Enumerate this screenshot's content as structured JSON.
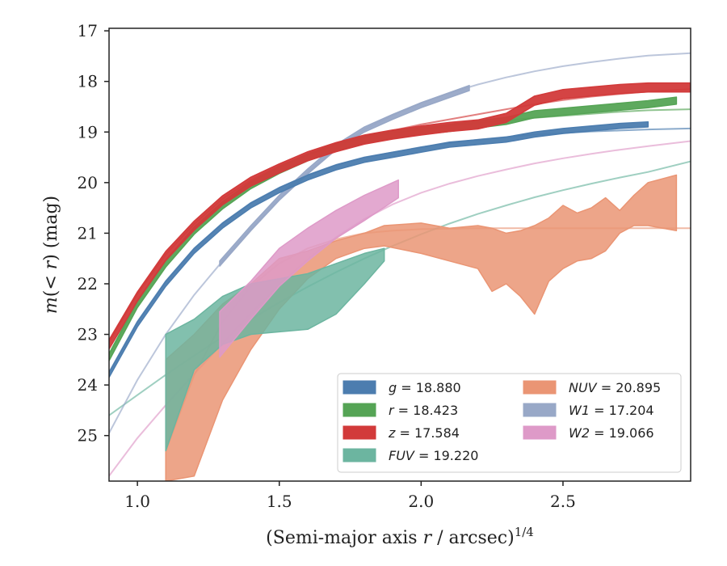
{
  "chart_data": {
    "type": "line",
    "xlabel": "(Semi-major axis r / arcsec)",
    "xlabel_italic_var": "r",
    "xlabel_exponent": "1/4",
    "ylabel": "m(< r) (mag)",
    "xlim": [
      0.9,
      2.95
    ],
    "ylim": [
      25.9,
      16.95
    ],
    "y_inverted": true,
    "xticks": [
      1.0,
      1.5,
      2.0,
      2.5
    ],
    "xtick_labels": [
      "1.0",
      "1.5",
      "2.0",
      "2.5"
    ],
    "yticks": [
      17,
      18,
      19,
      20,
      21,
      22,
      23,
      24,
      25
    ],
    "ytick_labels": [
      "17",
      "18",
      "19",
      "20",
      "21",
      "22",
      "23",
      "24",
      "25"
    ],
    "grid": false,
    "legend_position": "lower-right",
    "legend": [
      {
        "band": "g",
        "value": "18.880",
        "color": "#4c7daf",
        "italic_band": true
      },
      {
        "band": "r",
        "value": "18.423",
        "color": "#55a455",
        "italic_band": true
      },
      {
        "band": "z",
        "value": "17.584",
        "color": "#d23a3a",
        "italic_band": true
      },
      {
        "band": "FUV",
        "value": "19.220",
        "color": "#6cb5a0",
        "italic_band": true
      },
      {
        "band": "NUV",
        "value": "20.895",
        "color": "#ea9574",
        "italic_band": true
      },
      {
        "band": "W1",
        "value": "17.204",
        "color": "#98a8c7",
        "italic_band": true
      },
      {
        "band": "W2",
        "value": "19.066",
        "color": "#de9ac8",
        "italic_band": true
      }
    ],
    "series": [
      {
        "name": "g",
        "color": "#4c7daf",
        "band_x": [
          0.9,
          1.0,
          1.1,
          1.2,
          1.3,
          1.4,
          1.5,
          1.6,
          1.7,
          1.8,
          1.9,
          2.0,
          2.1,
          2.2,
          2.3,
          2.4,
          2.5,
          2.6,
          2.7,
          2.8
        ],
        "band_center": [
          23.8,
          22.8,
          22.0,
          21.35,
          20.85,
          20.45,
          20.15,
          19.9,
          19.7,
          19.55,
          19.45,
          19.35,
          19.25,
          19.2,
          19.15,
          19.05,
          18.98,
          18.93,
          18.88,
          18.85
        ],
        "band_half_width": 0.05,
        "model_x": [
          0.9,
          1.0,
          1.1,
          1.2,
          1.3,
          1.4,
          1.5,
          1.6,
          1.7,
          1.8,
          1.9,
          2.0,
          2.1,
          2.2,
          2.3,
          2.4,
          2.5,
          2.6,
          2.7,
          2.8,
          2.95
        ],
        "model_y": [
          23.75,
          22.75,
          21.95,
          21.3,
          20.8,
          20.4,
          20.1,
          19.85,
          19.65,
          19.5,
          19.4,
          19.3,
          19.22,
          19.15,
          19.1,
          19.05,
          19.02,
          18.99,
          18.97,
          18.95,
          18.93
        ]
      },
      {
        "name": "r",
        "color": "#55a455",
        "band_x": [
          0.9,
          1.0,
          1.1,
          1.2,
          1.3,
          1.4,
          1.5,
          1.6,
          1.7,
          1.8,
          1.9,
          2.0,
          2.1,
          2.2,
          2.3,
          2.4,
          2.5,
          2.6,
          2.7,
          2.8,
          2.9
        ],
        "band_center": [
          23.45,
          22.4,
          21.6,
          20.95,
          20.45,
          20.05,
          19.75,
          19.5,
          19.3,
          19.15,
          19.05,
          18.98,
          18.92,
          18.85,
          18.78,
          18.65,
          18.6,
          18.55,
          18.5,
          18.45,
          18.38
        ],
        "band_half_width": 0.07,
        "model_x": [
          0.9,
          1.0,
          1.1,
          1.2,
          1.3,
          1.4,
          1.5,
          1.6,
          1.7,
          1.8,
          1.9,
          2.0,
          2.1,
          2.2,
          2.3,
          2.4,
          2.5,
          2.6,
          2.7,
          2.8,
          2.95
        ],
        "model_y": [
          23.4,
          22.35,
          21.55,
          20.9,
          20.4,
          20.0,
          19.7,
          19.45,
          19.27,
          19.12,
          19.02,
          18.95,
          18.88,
          18.82,
          18.77,
          18.72,
          18.68,
          18.64,
          18.6,
          18.57,
          18.55
        ]
      },
      {
        "name": "z",
        "color": "#d23a3a",
        "band_x": [
          0.9,
          1.0,
          1.1,
          1.2,
          1.3,
          1.4,
          1.5,
          1.6,
          1.7,
          1.8,
          1.9,
          2.0,
          2.1,
          2.2,
          2.3,
          2.35,
          2.4,
          2.5,
          2.6,
          2.7,
          2.8,
          2.95
        ],
        "band_center": [
          23.2,
          22.25,
          21.45,
          20.85,
          20.35,
          19.98,
          19.72,
          19.48,
          19.3,
          19.15,
          19.05,
          18.97,
          18.9,
          18.85,
          18.72,
          18.55,
          18.38,
          18.25,
          18.2,
          18.15,
          18.12,
          18.12
        ],
        "band_half_width": 0.09,
        "model_x": [
          0.9,
          1.0,
          1.1,
          1.2,
          1.3,
          1.4,
          1.5,
          1.6,
          1.7,
          1.8,
          1.9,
          2.0,
          2.1,
          2.2,
          2.3,
          2.4,
          2.5,
          2.6,
          2.7,
          2.8,
          2.95
        ],
        "model_y": [
          23.15,
          22.2,
          21.42,
          20.82,
          20.32,
          19.95,
          19.67,
          19.45,
          19.25,
          19.1,
          18.97,
          18.85,
          18.75,
          18.65,
          18.55,
          18.45,
          18.37,
          18.3,
          18.25,
          18.2,
          18.15
        ]
      },
      {
        "name": "FUV",
        "color": "#6cb5a0",
        "band_x": [
          1.1,
          1.2,
          1.3,
          1.4,
          1.5,
          1.6,
          1.7,
          1.8,
          1.87
        ],
        "band_upper": [
          23.0,
          22.7,
          22.25,
          22.0,
          21.9,
          21.8,
          21.6,
          21.4,
          21.3
        ],
        "band_lower": [
          25.3,
          23.7,
          23.2,
          23.0,
          22.95,
          22.9,
          22.6,
          22.0,
          21.55
        ],
        "model_x": [
          0.9,
          1.0,
          1.1,
          1.2,
          1.3,
          1.4,
          1.5,
          1.6,
          1.7,
          1.8,
          1.9,
          2.0,
          2.1,
          2.2,
          2.3,
          2.4,
          2.5,
          2.6,
          2.7,
          2.8,
          2.95
        ],
        "model_y": [
          24.6,
          24.2,
          23.8,
          23.42,
          23.05,
          22.7,
          22.37,
          22.06,
          21.77,
          21.5,
          21.25,
          21.02,
          20.81,
          20.62,
          20.45,
          20.29,
          20.15,
          20.02,
          19.9,
          19.79,
          19.58
        ]
      },
      {
        "name": "NUV",
        "color": "#ea9574",
        "band_x": [
          1.1,
          1.2,
          1.3,
          1.4,
          1.5,
          1.6,
          1.7,
          1.8,
          1.87,
          2.0,
          2.1,
          2.2,
          2.25,
          2.3,
          2.35,
          2.4,
          2.45,
          2.5,
          2.55,
          2.6,
          2.65,
          2.7,
          2.75,
          2.8,
          2.9
        ],
        "band_upper": [
          23.5,
          23.0,
          22.4,
          22.0,
          21.5,
          21.35,
          21.15,
          21.0,
          20.85,
          20.8,
          20.9,
          20.85,
          20.9,
          21.0,
          20.95,
          20.85,
          20.7,
          20.45,
          20.6,
          20.5,
          20.3,
          20.55,
          20.25,
          20.0,
          19.85
        ],
        "band_lower": [
          25.9,
          25.8,
          24.3,
          23.3,
          22.5,
          21.9,
          21.5,
          21.3,
          21.25,
          21.4,
          21.55,
          21.7,
          22.15,
          22.0,
          22.25,
          22.6,
          21.95,
          21.7,
          21.55,
          21.5,
          21.35,
          21.0,
          20.85,
          20.85,
          20.95
        ],
        "model_x": [
          1.1,
          1.2,
          1.3,
          1.4,
          1.5,
          1.6,
          1.7,
          1.8,
          1.9,
          2.0,
          2.2,
          2.4,
          2.6,
          2.8,
          2.95
        ],
        "model_y": [
          25.3,
          23.8,
          22.75,
          22.05,
          21.6,
          21.3,
          21.12,
          21.0,
          20.95,
          20.92,
          20.9,
          20.9,
          20.9,
          20.9,
          20.9
        ]
      },
      {
        "name": "W1",
        "color": "#98a8c7",
        "band_x": [
          1.29,
          1.4,
          1.5,
          1.6,
          1.7,
          1.8,
          1.9,
          2.0,
          2.1,
          2.17
        ],
        "band_center": [
          21.6,
          20.9,
          20.3,
          19.78,
          19.3,
          18.95,
          18.7,
          18.47,
          18.27,
          18.13
        ],
        "band_half_width": 0.05,
        "model_x": [
          0.9,
          1.0,
          1.1,
          1.2,
          1.3,
          1.4,
          1.5,
          1.6,
          1.7,
          1.8,
          1.9,
          2.0,
          2.1,
          2.2,
          2.3,
          2.4,
          2.5,
          2.6,
          2.7,
          2.8,
          2.95
        ],
        "model_y": [
          24.95,
          23.9,
          23.0,
          22.22,
          21.55,
          20.92,
          20.33,
          19.8,
          19.33,
          18.95,
          18.67,
          18.43,
          18.23,
          18.06,
          17.92,
          17.8,
          17.7,
          17.62,
          17.55,
          17.49,
          17.44
        ]
      },
      {
        "name": "W2",
        "color": "#de9ac8",
        "band_x": [
          1.29,
          1.4,
          1.5,
          1.6,
          1.7,
          1.8,
          1.92
        ],
        "band_upper": [
          22.55,
          21.95,
          21.3,
          20.9,
          20.55,
          20.25,
          19.95
        ],
        "band_lower": [
          23.45,
          22.7,
          22.05,
          21.55,
          21.1,
          20.75,
          20.3
        ],
        "model_x": [
          0.9,
          1.0,
          1.1,
          1.2,
          1.3,
          1.4,
          1.5,
          1.6,
          1.7,
          1.8,
          1.9,
          2.0,
          2.1,
          2.2,
          2.3,
          2.4,
          2.5,
          2.6,
          2.7,
          2.8,
          2.95
        ],
        "model_y": [
          25.8,
          25.05,
          24.4,
          23.78,
          23.18,
          22.58,
          22.02,
          21.52,
          21.08,
          20.72,
          20.43,
          20.2,
          20.02,
          19.87,
          19.74,
          19.62,
          19.52,
          19.43,
          19.35,
          19.28,
          19.18
        ]
      }
    ]
  }
}
